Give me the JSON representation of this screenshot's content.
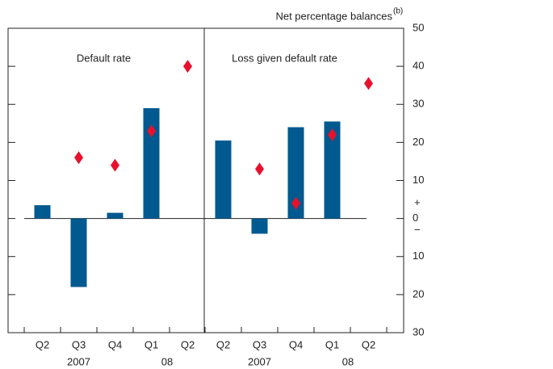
{
  "chart_data": [
    {
      "type": "bar",
      "title": "Default rate",
      "categories": [
        "Q2",
        "Q3",
        "Q4",
        "Q1",
        "Q2"
      ],
      "x_groups": [
        "2007",
        "08"
      ],
      "series": [
        {
          "type": "bar",
          "color": "#00598f",
          "values": [
            3.5,
            -18,
            1.5,
            29,
            null
          ]
        },
        {
          "type": "scatter",
          "color": "#e8112d",
          "values": [
            null,
            16,
            14,
            23,
            40
          ]
        }
      ],
      "ylim": [
        -30,
        50
      ]
    },
    {
      "type": "bar",
      "title": "Loss given default rate",
      "categories": [
        "Q2",
        "Q3",
        "Q4",
        "Q1",
        "Q2"
      ],
      "x_groups": [
        "2007",
        "08"
      ],
      "series": [
        {
          "type": "bar",
          "color": "#00598f",
          "values": [
            20.5,
            -4,
            24,
            25.5,
            null
          ]
        },
        {
          "type": "scatter",
          "color": "#e8112d",
          "values": [
            null,
            13,
            4,
            22,
            35.5
          ]
        }
      ],
      "ylim": [
        -30,
        50
      ],
      "y_label": "Net percentage balances",
      "y_label_note": "(b)",
      "yticks": [
        50,
        40,
        30,
        20,
        10,
        0,
        {
          "value": -10,
          "label": "10"
        },
        {
          "value": -20,
          "label": "20"
        },
        {
          "value": -30,
          "label": "30"
        }
      ],
      "sign_labels": [
        "+",
        "−"
      ]
    }
  ]
}
